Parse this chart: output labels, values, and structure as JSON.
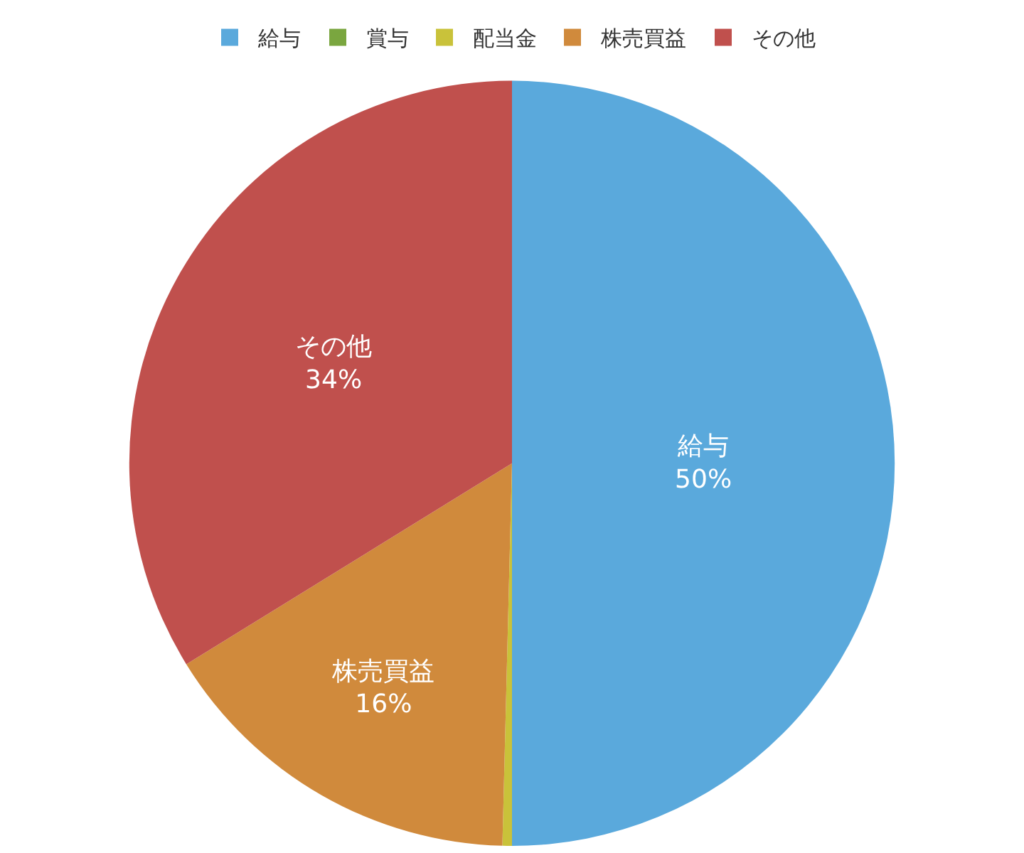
{
  "chart_data": {
    "type": "pie",
    "categories": [
      "給与",
      "賞与",
      "配当金",
      "株売買益",
      "その他"
    ],
    "values": [
      50,
      0,
      0.4,
      15.8,
      33.8
    ],
    "colors": [
      "#5aa9dc",
      "#7aa63f",
      "#c9c23a",
      "#d08a3c",
      "#c0504d"
    ],
    "value_labels": [
      "50%",
      null,
      null,
      "16%",
      "34%"
    ],
    "legend": "top"
  }
}
